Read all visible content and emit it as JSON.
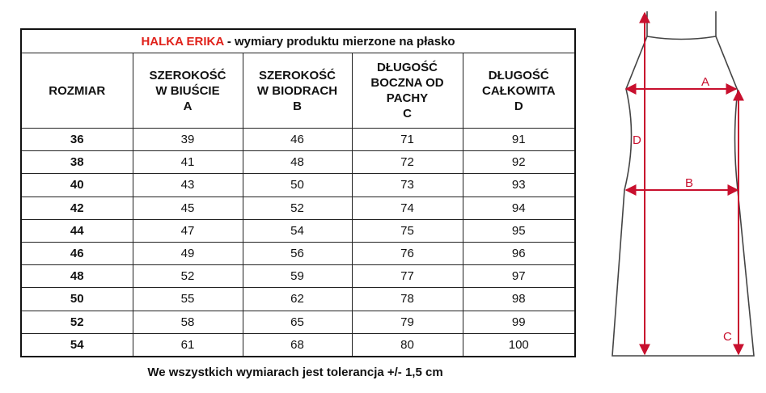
{
  "title": {
    "brand": "HALKA ERIKA",
    "rest": " - wymiary produktu mierzone na płasko"
  },
  "table": {
    "headers": [
      [
        "ROZMIAR"
      ],
      [
        "SZEROKOŚĆ",
        "W BIUŚCIE",
        "A"
      ],
      [
        "SZEROKOŚĆ",
        "W BIODRACH",
        "B"
      ],
      [
        "DŁUGOŚĆ",
        "BOCZNA OD",
        "PACHY",
        "C"
      ],
      [
        "DŁUGOŚĆ",
        "CAŁKOWITA",
        "D"
      ]
    ],
    "rows": [
      [
        "36",
        "39",
        "46",
        "71",
        "91"
      ],
      [
        "38",
        "41",
        "48",
        "72",
        "92"
      ],
      [
        "40",
        "43",
        "50",
        "73",
        "93"
      ],
      [
        "42",
        "45",
        "52",
        "74",
        "94"
      ],
      [
        "44",
        "47",
        "54",
        "75",
        "95"
      ],
      [
        "46",
        "49",
        "56",
        "76",
        "96"
      ],
      [
        "48",
        "52",
        "59",
        "77",
        "97"
      ],
      [
        "50",
        "55",
        "62",
        "78",
        "98"
      ],
      [
        "52",
        "58",
        "65",
        "79",
        "99"
      ],
      [
        "54",
        "61",
        "68",
        "80",
        "100"
      ]
    ]
  },
  "footer": "We wszystkich wymiarach jest tolerancja +/- 1,5 cm",
  "diagram": {
    "labels": {
      "a": "A",
      "b": "B",
      "c": "C",
      "d": "D"
    }
  }
}
